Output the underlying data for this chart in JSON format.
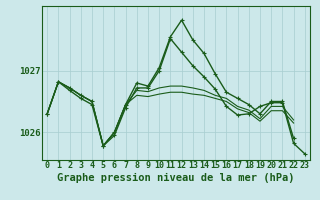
{
  "background_color": "#cce8ea",
  "grid_color": "#a8ced0",
  "line_color": "#1a5c1a",
  "xlabel": "Graphe pression niveau de la mer (hPa)",
  "xlabel_fontsize": 7.5,
  "tick_fontsize": 6.5,
  "ytick_vals": [
    1026,
    1027
  ],
  "ylim": [
    1025.55,
    1028.05
  ],
  "xlim": [
    -0.5,
    23.5
  ],
  "series": [
    {
      "y": [
        1026.3,
        1026.82,
        1026.72,
        1026.6,
        1026.5,
        1025.78,
        1026.0,
        1026.45,
        1026.8,
        1026.75,
        1027.05,
        1027.55,
        1027.82,
        1027.5,
        1027.28,
        1026.95,
        1026.65,
        1026.55,
        1026.45,
        1026.3,
        1026.5,
        1026.5,
        1025.9,
        null
      ],
      "marker": true,
      "lw": 1.0
    },
    {
      "y": [
        1026.3,
        1026.82,
        1026.72,
        1026.6,
        1026.5,
        1025.78,
        1026.0,
        1026.45,
        1026.6,
        1026.58,
        1026.62,
        1026.65,
        1026.65,
        1026.62,
        1026.6,
        1026.55,
        1026.5,
        1026.38,
        1026.32,
        1026.18,
        1026.35,
        1026.35,
        1026.15,
        null
      ],
      "marker": false,
      "lw": 0.8
    },
    {
      "y": [
        1026.3,
        1026.82,
        1026.72,
        1026.6,
        1026.5,
        1025.78,
        1026.0,
        1026.45,
        1026.68,
        1026.66,
        1026.72,
        1026.75,
        1026.75,
        1026.72,
        1026.68,
        1026.6,
        1026.55,
        1026.42,
        1026.36,
        1026.22,
        1026.42,
        1026.42,
        1026.2,
        null
      ],
      "marker": false,
      "lw": 0.8
    },
    {
      "y": [
        1026.3,
        1026.82,
        1026.68,
        1026.55,
        1026.45,
        1025.78,
        1025.95,
        1026.4,
        1026.72,
        1026.72,
        1027.0,
        1027.52,
        1027.3,
        1027.08,
        1026.9,
        1026.7,
        1026.42,
        1026.28,
        1026.3,
        1026.42,
        1026.48,
        1026.48,
        1025.82,
        1025.65
      ],
      "marker": true,
      "lw": 1.0
    }
  ]
}
